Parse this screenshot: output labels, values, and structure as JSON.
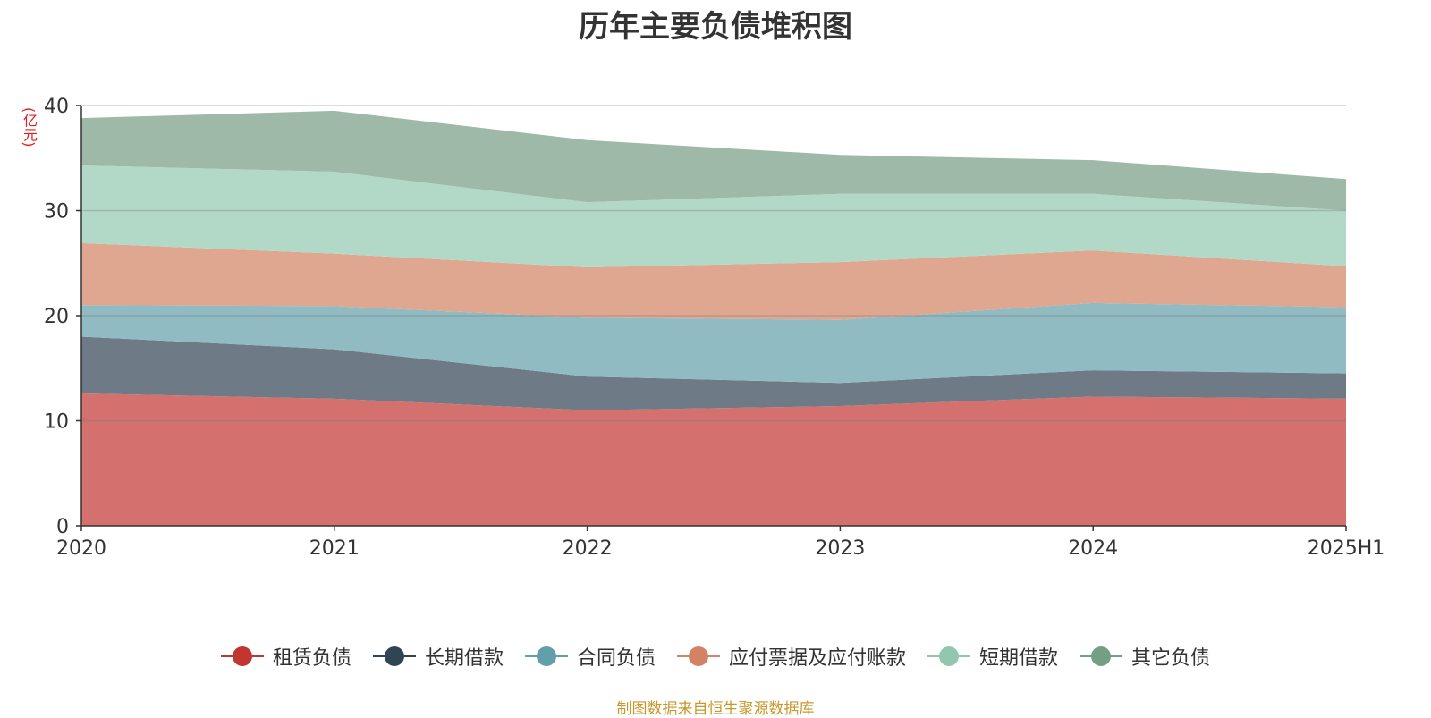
{
  "chart_data": {
    "type": "area",
    "stacked": true,
    "title": "历年主要负债堆积图",
    "unit_label": "(亿元)",
    "categories": [
      "2020",
      "2021",
      "2022",
      "2023",
      "2024",
      "2025H1"
    ],
    "ylim": [
      0,
      40
    ],
    "y_ticks": [
      0,
      10,
      20,
      30,
      40
    ],
    "series": [
      {
        "name": "租赁负债",
        "color": "#c23531",
        "fill": "#d4706d",
        "values": [
          12.6,
          12.1,
          11.0,
          11.4,
          12.3,
          12.1
        ]
      },
      {
        "name": "长期借款",
        "color": "#2f4554",
        "fill": "#6e7b86",
        "values": [
          5.4,
          4.7,
          3.2,
          2.2,
          2.5,
          2.4
        ]
      },
      {
        "name": "合同负债",
        "color": "#61a0a8",
        "fill": "#90bbc2",
        "values": [
          3.0,
          4.1,
          5.6,
          6.0,
          6.4,
          6.3
        ]
      },
      {
        "name": "应付票据及应付账款",
        "color": "#d48265",
        "fill": "#dfa690",
        "values": [
          5.9,
          5.0,
          4.8,
          5.5,
          5.0,
          3.9
        ]
      },
      {
        "name": "短期借款",
        "color": "#91c7ae",
        "fill": "#b2d9c7",
        "values": [
          7.4,
          7.8,
          6.2,
          6.5,
          5.4,
          5.3
        ]
      },
      {
        "name": "其它负债",
        "color": "#749f83",
        "fill": "#9eb9a7",
        "values": [
          4.5,
          5.8,
          5.9,
          3.7,
          3.2,
          3.0
        ]
      }
    ],
    "legend_position": "bottom"
  },
  "source": "制图数据来自恒生聚源数据库"
}
